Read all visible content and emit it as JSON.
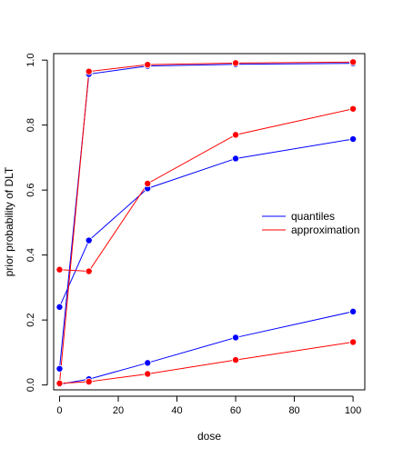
{
  "chart_data": {
    "type": "line",
    "title": "",
    "xlabel": "dose",
    "ylabel": "prior probability of DLT",
    "xlim": [
      -2,
      104
    ],
    "ylim": [
      -0.015,
      1.02
    ],
    "x_ticks": [
      0,
      20,
      40,
      60,
      80,
      100
    ],
    "x_tick_labels": [
      "0",
      "20",
      "40",
      "60",
      "80",
      "100"
    ],
    "y_ticks": [
      0.0,
      0.2,
      0.4,
      0.6,
      0.8,
      1.0
    ],
    "y_tick_labels": [
      "0.0",
      "0.2",
      "0.4",
      "0.6",
      "0.8",
      "1.0"
    ],
    "grid": false,
    "legend_position": "right",
    "x": [
      0,
      10,
      30,
      60,
      100
    ],
    "series": [
      {
        "name": "quantiles",
        "color": "#0000ff",
        "values": [
          0.002,
          0.018,
          0.068,
          0.146,
          0.226
        ]
      },
      {
        "name": "quantiles",
        "color": "#0000ff",
        "values": [
          0.24,
          0.445,
          0.605,
          0.697,
          0.757
        ]
      },
      {
        "name": "quantiles",
        "color": "#0000ff",
        "values": [
          0.05,
          0.957,
          0.982,
          0.987,
          0.99
        ]
      },
      {
        "name": "approximation",
        "color": "#ff0000",
        "values": [
          0.005,
          0.01,
          0.034,
          0.077,
          0.132
        ]
      },
      {
        "name": "approximation",
        "color": "#ff0000",
        "values": [
          0.355,
          0.35,
          0.62,
          0.77,
          0.85
        ]
      },
      {
        "name": "approximation",
        "color": "#ff0000",
        "values": [
          0.005,
          0.965,
          0.986,
          0.991,
          0.994
        ]
      }
    ],
    "legend": [
      {
        "label": "quantiles",
        "color": "#0000ff"
      },
      {
        "label": "approximation",
        "color": "#ff0000"
      }
    ]
  }
}
